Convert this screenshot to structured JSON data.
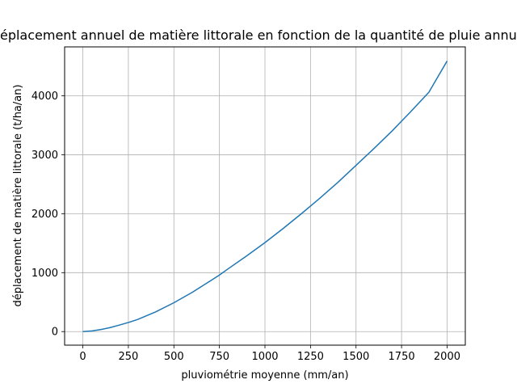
{
  "chart_data": {
    "type": "line",
    "title": "Déplacement annuel de matière littorale en fonction de la quantité de pluie annuelle",
    "xlabel": "pluviométrie moyenne (mm/an)",
    "ylabel": "déplacement de matière littorale (t/ha/an)",
    "xlim": [
      -100,
      2100
    ],
    "ylim": [
      -230,
      4830
    ],
    "xticks": [
      0,
      250,
      500,
      750,
      1000,
      1250,
      1500,
      1750,
      2000
    ],
    "yticks": [
      0,
      1000,
      2000,
      3000,
      4000
    ],
    "grid": true,
    "legend": "none",
    "series": [
      {
        "color": "#1f77b4",
        "x": [
          0,
          50,
          100,
          150,
          200,
          250,
          300,
          400,
          500,
          600,
          700,
          750,
          800,
          900,
          1000,
          1100,
          1200,
          1250,
          1300,
          1400,
          1500,
          1600,
          1700,
          1750,
          1800,
          1900,
          2000
        ],
        "y": [
          0,
          12,
          35,
          68,
          110,
          155,
          205,
          335,
          490,
          665,
          860,
          960,
          1070,
          1285,
          1510,
          1750,
          2000,
          2130,
          2260,
          2530,
          2820,
          3110,
          3410,
          3570,
          3730,
          4060,
          4590
        ]
      }
    ]
  }
}
